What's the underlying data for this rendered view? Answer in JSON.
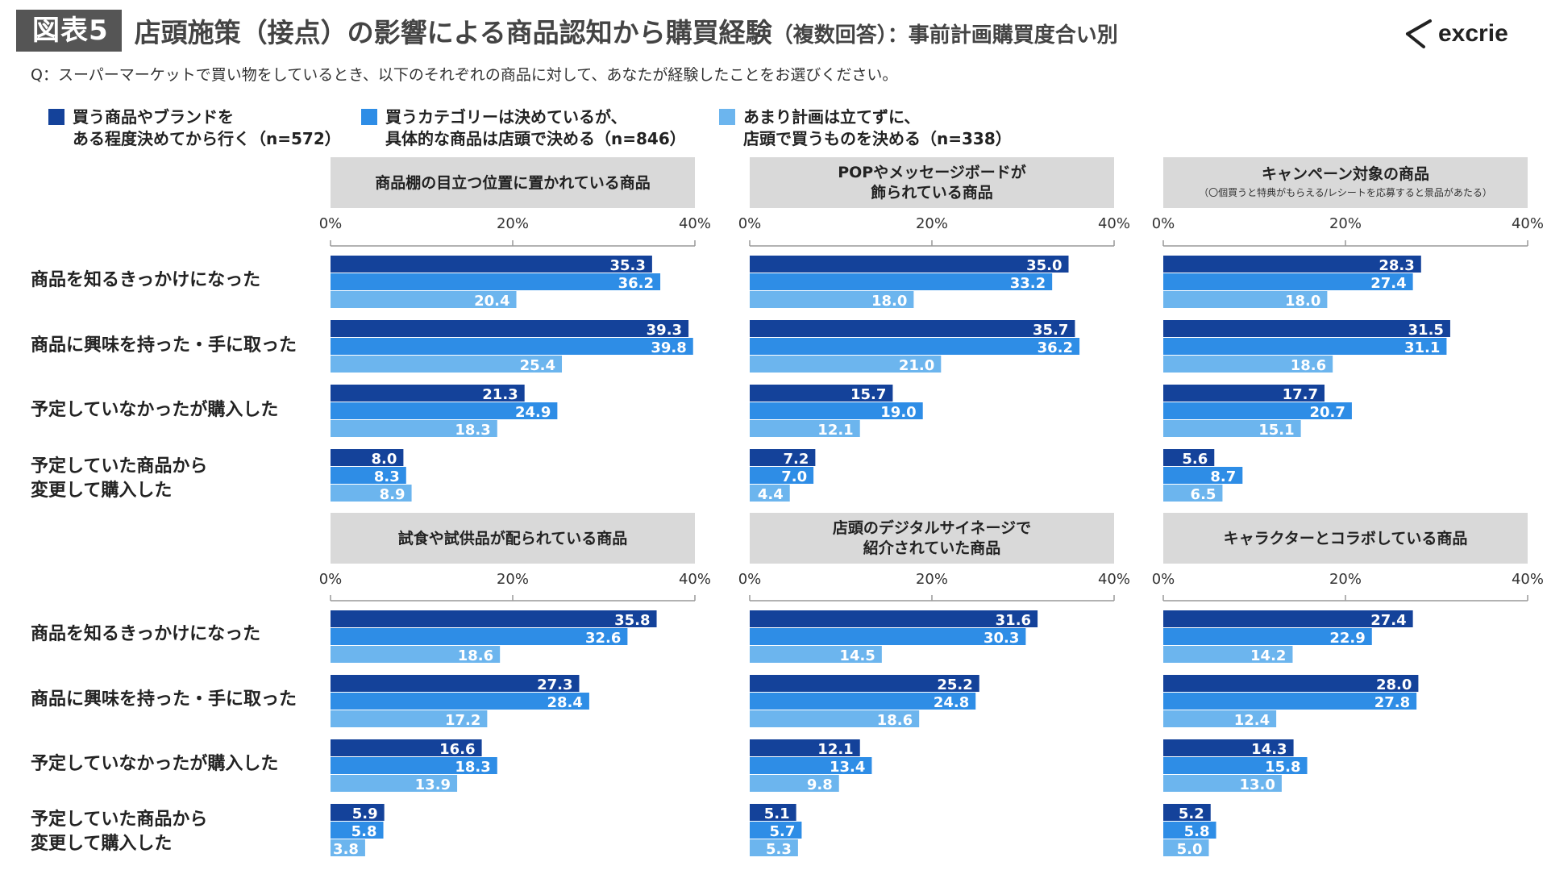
{
  "header": {
    "badge": "図表5",
    "title_main": "店頭施策（接点）の影響による商品認知から購買経験",
    "title_sub": "（複数回答）：事前計画購買度合い別"
  },
  "logo": {
    "text": "excrie"
  },
  "question": "Q：スーパーマーケットで買い物をしているとき、以下のそれぞれの商品に対して、あなたが経験したことをお選びください。",
  "colors": {
    "series1": "#14429a",
    "series2": "#2e8de6",
    "series3": "#6cb5ee",
    "panel_header": "#d9d9d9",
    "badge": "#555555"
  },
  "legend": [
    {
      "label": "買う商品やブランドを\nある程度決めてから行く（n=572）"
    },
    {
      "label": "買うカテゴリーは決めているが、\n具体的な商品は店頭で決める（n=846）"
    },
    {
      "label": "あまり計画は立てずに、\n店頭で買うものを決める（n=338）"
    }
  ],
  "row_labels": [
    "商品を知るきっかけになった",
    "商品に興味を持った・手に取った",
    "予定していなかったが購入した",
    "予定していた商品から\n変更して購入した"
  ],
  "chart_data": [
    {
      "type": "bar",
      "orientation": "horizontal",
      "title": "商品棚の目立つ位置に置かれている商品",
      "subtitle": "",
      "categories": [
        "商品を知るきっかけになった",
        "商品に興味を持った・手に取った",
        "予定していなかったが購入した",
        "予定していた商品から変更して購入した"
      ],
      "xlim": [
        0,
        40
      ],
      "ticks": [
        "0%",
        "20%",
        "40%"
      ],
      "series": [
        {
          "name": "買う商品やブランドをある程度決めてから行く（n=572）",
          "values": [
            35.3,
            39.3,
            21.3,
            8.0
          ]
        },
        {
          "name": "買うカテゴリーは決めているが、具体的な商品は店頭で決める（n=846）",
          "values": [
            36.2,
            39.8,
            24.9,
            8.3
          ]
        },
        {
          "name": "あまり計画は立てずに、店頭で買うものを決める（n=338）",
          "values": [
            20.4,
            25.4,
            18.3,
            8.9
          ]
        }
      ]
    },
    {
      "type": "bar",
      "orientation": "horizontal",
      "title": "POPやメッセージボードが\n飾られている商品",
      "subtitle": "",
      "categories": [
        "商品を知るきっかけになった",
        "商品に興味を持った・手に取った",
        "予定していなかったが購入した",
        "予定していた商品から変更して購入した"
      ],
      "xlim": [
        0,
        40
      ],
      "ticks": [
        "0%",
        "20%",
        "40%"
      ],
      "series": [
        {
          "name": "買う商品やブランドをある程度決めてから行く（n=572）",
          "values": [
            35.0,
            35.7,
            15.7,
            7.2
          ]
        },
        {
          "name": "買うカテゴリーは決めているが、具体的な商品は店頭で決める（n=846）",
          "values": [
            33.2,
            36.2,
            19.0,
            7.0
          ]
        },
        {
          "name": "あまり計画は立てずに、店頭で買うものを決める（n=338）",
          "values": [
            18.0,
            21.0,
            12.1,
            4.4
          ]
        }
      ]
    },
    {
      "type": "bar",
      "orientation": "horizontal",
      "title": "キャンペーン対象の商品",
      "subtitle": "（〇個買うと特典がもらえる/レシートを応募すると景品があたる）",
      "categories": [
        "商品を知るきっかけになった",
        "商品に興味を持った・手に取った",
        "予定していなかったが購入した",
        "予定していた商品から変更して購入した"
      ],
      "xlim": [
        0,
        40
      ],
      "ticks": [
        "0%",
        "20%",
        "40%"
      ],
      "series": [
        {
          "name": "買う商品やブランドをある程度決めてから行く（n=572）",
          "values": [
            28.3,
            31.5,
            17.7,
            5.6
          ]
        },
        {
          "name": "買うカテゴリーは決めているが、具体的な商品は店頭で決める（n=846）",
          "values": [
            27.4,
            31.1,
            20.7,
            8.7
          ]
        },
        {
          "name": "あまり計画は立てずに、店頭で買うものを決める（n=338）",
          "values": [
            18.0,
            18.6,
            15.1,
            6.5
          ]
        }
      ]
    },
    {
      "type": "bar",
      "orientation": "horizontal",
      "title": "試食や試供品が配られている商品",
      "subtitle": "",
      "categories": [
        "商品を知るきっかけになった",
        "商品に興味を持った・手に取った",
        "予定していなかったが購入した",
        "予定していた商品から変更して購入した"
      ],
      "xlim": [
        0,
        40
      ],
      "ticks": [
        "0%",
        "20%",
        "40%"
      ],
      "series": [
        {
          "name": "買う商品やブランドをある程度決めてから行く（n=572）",
          "values": [
            35.8,
            27.3,
            16.6,
            5.9
          ]
        },
        {
          "name": "買うカテゴリーは決めているが、具体的な商品は店頭で決める（n=846）",
          "values": [
            32.6,
            28.4,
            18.3,
            5.8
          ]
        },
        {
          "name": "あまり計画は立てずに、店頭で買うものを決める（n=338）",
          "values": [
            18.6,
            17.2,
            13.9,
            3.8
          ]
        }
      ]
    },
    {
      "type": "bar",
      "orientation": "horizontal",
      "title": "店頭のデジタルサイネージで\n紹介されていた商品",
      "subtitle": "",
      "categories": [
        "商品を知るきっかけになった",
        "商品に興味を持った・手に取った",
        "予定していなかったが購入した",
        "予定していた商品から変更して購入した"
      ],
      "xlim": [
        0,
        40
      ],
      "ticks": [
        "0%",
        "20%",
        "40%"
      ],
      "series": [
        {
          "name": "買う商品やブランドをある程度決めてから行く（n=572）",
          "values": [
            31.6,
            25.2,
            12.1,
            5.1
          ]
        },
        {
          "name": "買うカテゴリーは決めているが、具体的な商品は店頭で決める（n=846）",
          "values": [
            30.3,
            24.8,
            13.4,
            5.7
          ]
        },
        {
          "name": "あまり計画は立てずに、店頭で買うものを決める（n=338）",
          "values": [
            14.5,
            18.6,
            9.8,
            5.3
          ]
        }
      ]
    },
    {
      "type": "bar",
      "orientation": "horizontal",
      "title": "キャラクターとコラボしている商品",
      "subtitle": "",
      "categories": [
        "商品を知るきっかけになった",
        "商品に興味を持った・手に取った",
        "予定していなかったが購入した",
        "予定していた商品から変更して購入した"
      ],
      "xlim": [
        0,
        40
      ],
      "ticks": [
        "0%",
        "20%",
        "40%"
      ],
      "series": [
        {
          "name": "買う商品やブランドをある程度決めてから行く（n=572）",
          "values": [
            27.4,
            28.0,
            14.3,
            5.2
          ]
        },
        {
          "name": "買うカテゴリーは決めているが、具体的な商品は店頭で決める（n=846）",
          "values": [
            22.9,
            27.8,
            15.8,
            5.8
          ]
        },
        {
          "name": "あまり計画は立てずに、店頭で買うものを決める（n=338）",
          "values": [
            14.2,
            12.4,
            13.0,
            5.0
          ]
        }
      ]
    }
  ]
}
